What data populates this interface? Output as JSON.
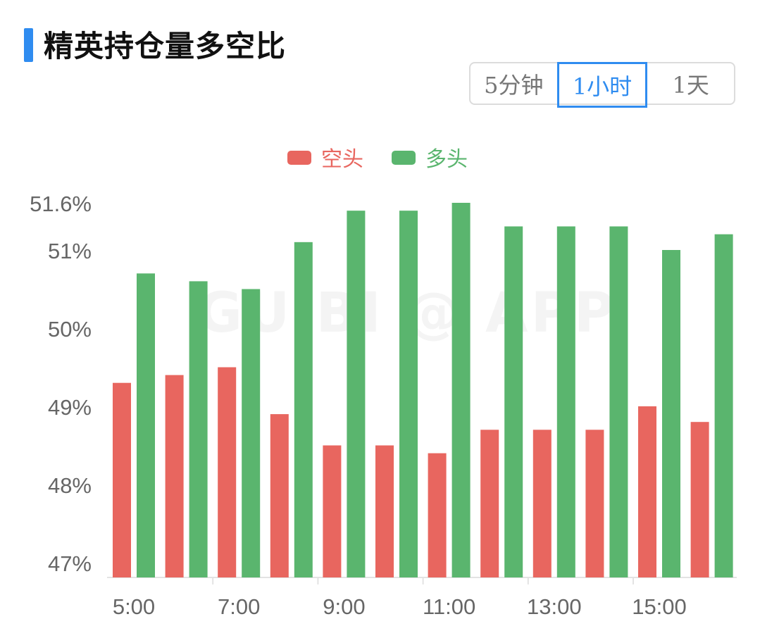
{
  "header": {
    "title": "精英持仓量多空比"
  },
  "tabs": [
    {
      "label": "5分钟",
      "active": false
    },
    {
      "label": "1小时",
      "active": true
    },
    {
      "label": "1天",
      "active": false
    }
  ],
  "watermark": "GUIBI @ APP",
  "colors": {
    "short": "#e8665f",
    "long": "#5ab56e",
    "accent": "#2f8cf0"
  },
  "chart_data": {
    "type": "bar",
    "categories": [
      "5:00",
      "6:00",
      "7:00",
      "8:00",
      "9:00",
      "10:00",
      "11:00",
      "12:00",
      "13:00",
      "14:00",
      "15:00",
      "16:00"
    ],
    "x_tick_labels": [
      "5:00",
      "7:00",
      "9:00",
      "11:00",
      "13:00",
      "15:00"
    ],
    "y_ticks": [
      47,
      48,
      49,
      50,
      51,
      51.6
    ],
    "y_tick_labels": [
      "47%",
      "48%",
      "49%",
      "50%",
      "51%",
      "51.6%"
    ],
    "series": [
      {
        "name": "空头",
        "values": [
          49.3,
          49.4,
          49.5,
          48.9,
          48.5,
          48.5,
          48.4,
          48.7,
          48.7,
          48.7,
          49.0,
          48.8
        ]
      },
      {
        "name": "多头",
        "values": [
          50.7,
          50.6,
          50.5,
          51.1,
          51.5,
          51.5,
          51.6,
          51.3,
          51.3,
          51.3,
          51.0,
          51.2
        ]
      }
    ],
    "legend_position": "top-center",
    "grid": false,
    "ylim": [
      47,
      51.6
    ]
  }
}
